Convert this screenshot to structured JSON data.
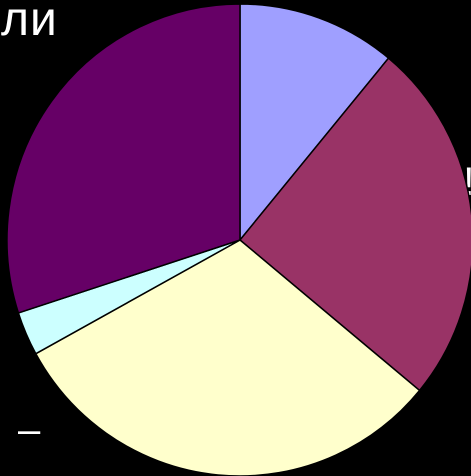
{
  "background_text": {
    "fragment_top": "ли",
    "fragment_right": "о!",
    "fragment_bottom": "–"
  },
  "chart_data": {
    "type": "pie",
    "title": "",
    "start": "12 o'clock",
    "direction": "clockwise",
    "slices": [
      {
        "value": 11,
        "color": "#9f9fff"
      },
      {
        "value": 25,
        "color": "#993366"
      },
      {
        "value": 31,
        "color": "#ffffcc"
      },
      {
        "value": 3,
        "color": "#ccffff"
      },
      {
        "value": 30,
        "color": "#660066"
      }
    ],
    "legend": "none",
    "data_labels": "none"
  }
}
